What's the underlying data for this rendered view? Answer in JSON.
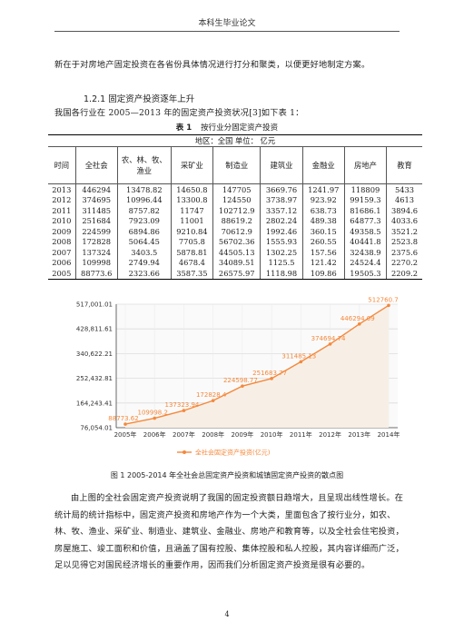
{
  "header": {
    "title": "本科生毕业论文"
  },
  "paragraphs": {
    "p1": "新在于对房地产固定投资在各省份具体情况进行打分和聚类，以便更好地制定方案。",
    "section": "1.2.1 固定资产投资逐年上升",
    "p2": "我国各行业在 2005—2013 年的固定资产投资状况[3]如下表 1：",
    "p3": "由上图的全社会固定资产投资说明了我国的固定投资额日趋增大，且呈现出线性增长。在统计局的统计指标中，固定资产投资和房地产作为一个大类，里面包含了按行业分，如农、林、牧、渔业、采矿业、制造业、建筑业、金融业、房地产和教育等，以及全社会住宅投资，房屋施工、竣工面积和价值，且涵盖了国有控股、集体控股和私人控股，其内容详细而广泛，足以见得它对国民经济增长的重要作用，因而我们分析固定资产投资是很有必要的。"
  },
  "table": {
    "caption_label": "表 1",
    "caption_title": "按行业分固定资产投资",
    "region_line": "地区：全国    单位：    亿元",
    "headers": [
      "时间",
      "全社会",
      "农、林、牧、渔业",
      "采矿业",
      "制造业",
      "建筑业",
      "金融业",
      "房地产",
      "教育"
    ],
    "rows": [
      [
        "2013",
        "446294",
        "13478.82",
        "14650.8",
        "147705",
        "3669.76",
        "1241.97",
        "118809",
        "5433"
      ],
      [
        "2012",
        "374695",
        "10996.44",
        "13300.8",
        "124550",
        "3738.97",
        "923.92",
        "99159.3",
        "4613"
      ],
      [
        "2011",
        "311485",
        "8757.82",
        "11747",
        "102712.9",
        "3357.12",
        "638.73",
        "81686.1",
        "3894.6"
      ],
      [
        "2010",
        "251684",
        "7923.09",
        "11001",
        "88619.2",
        "2802.24",
        "489.38",
        "64877.3",
        "4033.6"
      ],
      [
        "2009",
        "224599",
        "6894.86",
        "9210.84",
        "70612.9",
        "1992.46",
        "360.15",
        "49358.5",
        "3521.2"
      ],
      [
        "2008",
        "172828",
        "5064.45",
        "7705.8",
        "56702.36",
        "1555.93",
        "260.55",
        "40441.8",
        "2523.8"
      ],
      [
        "2007",
        "137324",
        "3403.5",
        "5878.81",
        "44505.13",
        "1302.25",
        "157.56",
        "32438.9",
        "2375.6"
      ],
      [
        "2006",
        "109998",
        "2749.94",
        "4678.4",
        "34089.51",
        "1125.5",
        "121.42",
        "24524.4",
        "2270.2"
      ],
      [
        "2005",
        "88773.6",
        "2323.66",
        "3587.35",
        "26575.97",
        "1118.98",
        "109.86",
        "19505.3",
        "2209.2"
      ]
    ]
  },
  "chart_data": {
    "type": "area",
    "categories": [
      "2005年",
      "2006年",
      "2007年",
      "2008年",
      "2009年",
      "2010年",
      "2011年",
      "2012年",
      "2013年",
      "2014年"
    ],
    "series": [
      {
        "name": "全社会固定资产投资(亿元)",
        "values": [
          88773.62,
          109998.2,
          137323.94,
          172828.4,
          224598.77,
          251683.77,
          311485.13,
          374694.74,
          446294.09,
          512760.7
        ],
        "labels": [
          "88773.62",
          "109998.2",
          "137323.94",
          "172828.4",
          "224598.77",
          "251683.77",
          "311485.13",
          "374694.74",
          "446294.09",
          "512760.7"
        ]
      }
    ],
    "yticks": [
      76054.01,
      164243.41,
      252432.81,
      340622.21,
      428811.61,
      517001.01
    ],
    "ytick_labels": [
      "76,054.01",
      "164,243.41",
      "252,432.81",
      "340,622.21",
      "428,811.61",
      "517,001.01"
    ],
    "ylim": [
      76054.01,
      517001.01
    ],
    "grid": true,
    "legend": "bottom",
    "colors": {
      "line": "#f5883b",
      "fill": "#f7efe6",
      "label": "#f5883b",
      "grid": "#dcdcdc",
      "axis": "#444444"
    }
  },
  "figure": {
    "caption": "图 1  2005-2014 年全社会总固定资产投资和城镇固定资产投资的散点图"
  },
  "footer": {
    "page_number": "4"
  }
}
